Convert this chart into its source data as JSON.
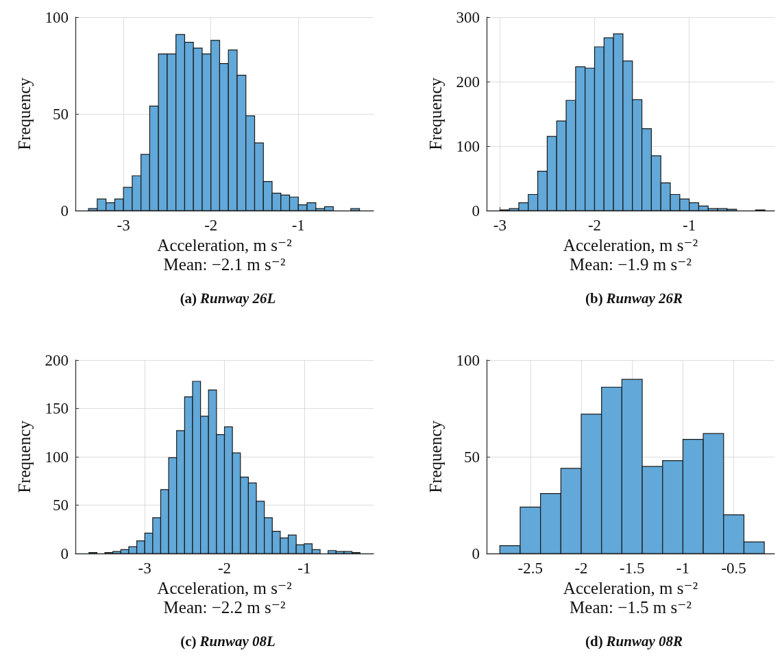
{
  "chart_data": [
    {
      "type": "histogram",
      "title": "(a) Runway 26L",
      "xlabel": "Acceleration, m s⁻²",
      "ylabel": "Frequency",
      "annotations": [
        "Mean: −2.1 m s⁻²"
      ],
      "color": "#62a8d8",
      "grid": true,
      "xlim": [
        -3.55,
        -0.14
      ],
      "xticks": [
        -3,
        -2,
        -1
      ],
      "ylim": [
        0,
        100
      ],
      "yticks": [
        0,
        50,
        100
      ],
      "bins": [
        -3.4,
        -3.3,
        -3.2,
        -3.1,
        -3.0,
        -2.9,
        -2.8,
        -2.7,
        -2.6,
        -2.5,
        -2.4,
        -2.3,
        -2.2,
        -2.1,
        -2.0,
        -1.9,
        -1.8,
        -1.7,
        -1.6,
        -1.5,
        -1.4,
        -1.3,
        -1.2,
        -1.1,
        -1.0,
        -0.9,
        -0.8,
        -0.7,
        -0.6,
        -0.5,
        -0.4,
        -0.3
      ],
      "values": [
        1,
        6,
        4,
        6,
        12,
        18,
        29,
        54,
        81,
        81,
        91,
        87,
        84,
        81,
        88,
        76,
        83,
        70,
        49,
        35,
        15,
        9,
        8,
        7,
        3,
        4,
        1,
        2,
        0,
        0,
        1
      ]
    },
    {
      "type": "histogram",
      "title": "(b) Runway 26R",
      "xlabel": "Acceleration, m s⁻²",
      "ylabel": "Frequency",
      "annotations": [
        "Mean: −1.9 m s⁻²"
      ],
      "color": "#62a8d8",
      "grid": true,
      "xlim": [
        -3.14,
        -0.1
      ],
      "xticks": [
        -3,
        -2,
        -1
      ],
      "ylim": [
        0,
        300
      ],
      "yticks": [
        0,
        100,
        200,
        300
      ],
      "bins": [
        -3.0,
        -2.9,
        -2.8,
        -2.7,
        -2.6,
        -2.5,
        -2.4,
        -2.3,
        -2.2,
        -2.1,
        -2.0,
        -1.9,
        -1.8,
        -1.7,
        -1.6,
        -1.5,
        -1.4,
        -1.3,
        -1.2,
        -1.1,
        -1.0,
        -0.9,
        -0.8,
        -0.7,
        -0.6,
        -0.5,
        -0.4,
        -0.3,
        -0.2
      ],
      "values": [
        1,
        3,
        12,
        25,
        61,
        115,
        139,
        171,
        223,
        221,
        254,
        268,
        274,
        232,
        172,
        127,
        85,
        43,
        25,
        18,
        12,
        7,
        3,
        3,
        2,
        0,
        0,
        1
      ]
    },
    {
      "type": "histogram",
      "title": "(c) Runway 08L",
      "xlabel": "Acceleration, m s⁻²",
      "ylabel": "Frequency",
      "annotations": [
        "Mean: −2.2 m s⁻²"
      ],
      "color": "#62a8d8",
      "grid": true,
      "xlim": [
        -3.87,
        -0.13
      ],
      "xticks": [
        -3,
        -2,
        -1
      ],
      "ylim": [
        0,
        200
      ],
      "yticks": [
        0,
        50,
        100,
        150,
        200
      ],
      "bins": [
        -3.7,
        -3.6,
        -3.5,
        -3.4,
        -3.3,
        -3.2,
        -3.1,
        -3.0,
        -2.9,
        -2.8,
        -2.7,
        -2.6,
        -2.5,
        -2.4,
        -2.3,
        -2.2,
        -2.1,
        -2.0,
        -1.9,
        -1.8,
        -1.7,
        -1.6,
        -1.5,
        -1.4,
        -1.3,
        -1.2,
        -1.1,
        -1.0,
        -0.9,
        -0.8,
        -0.7,
        -0.6,
        -0.5,
        -0.4,
        -0.3
      ],
      "values": [
        1,
        0,
        1,
        2,
        4,
        7,
        13,
        21,
        37,
        66,
        99,
        127,
        162,
        178,
        142,
        169,
        123,
        131,
        104,
        79,
        73,
        54,
        37,
        23,
        16,
        19,
        9,
        10,
        4,
        0,
        3,
        2,
        2,
        1
      ]
    },
    {
      "type": "histogram",
      "title": "(d) Runway 08R",
      "xlabel": "Acceleration, m s⁻²",
      "ylabel": "Frequency",
      "annotations": [
        "Mean: −1.5 m s⁻²"
      ],
      "color": "#62a8d8",
      "grid": true,
      "xlim": [
        -2.93,
        -0.1
      ],
      "xticks": [
        -2.5,
        -2,
        -1.5,
        -1,
        -0.5
      ],
      "ylim": [
        0,
        100
      ],
      "yticks": [
        0,
        50,
        100
      ],
      "bins": [
        -2.8,
        -2.6,
        -2.4,
        -2.2,
        -2.0,
        -1.8,
        -1.6,
        -1.4,
        -1.2,
        -1.0,
        -0.8,
        -0.6,
        -0.4,
        -0.2
      ],
      "values": [
        4,
        24,
        31,
        44,
        72,
        86,
        90,
        45,
        48,
        59,
        62,
        20,
        6
      ]
    }
  ]
}
